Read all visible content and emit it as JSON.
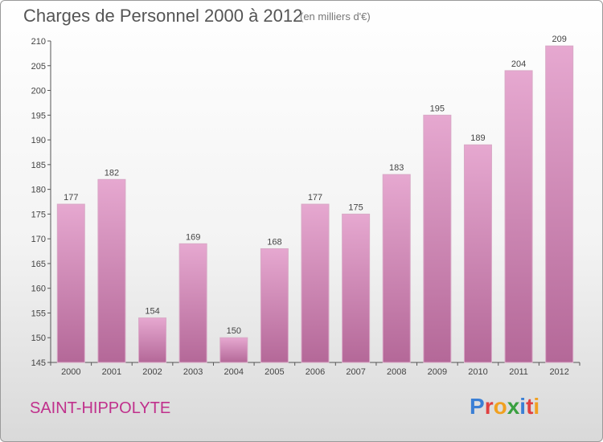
{
  "title": "Charges de Personnel 2000 à 2012",
  "subtitle": "(en milliers d'€)",
  "commune": "SAINT-HIPPOLYTE",
  "logo": {
    "letters": [
      "P",
      "r",
      "o",
      "x",
      "i",
      "t",
      "i"
    ],
    "colors": [
      "#3a7fd5",
      "#e04040",
      "#f0a020",
      "#3aa040",
      "#3a7fd5",
      "#e04040",
      "#f0a020"
    ]
  },
  "colors": {
    "bar_top": "#e6a8d0",
    "bar_bottom": "#b86a9c",
    "text": "#555555",
    "accent": "#c0308c"
  },
  "chart_data": {
    "type": "bar",
    "categories": [
      "2000",
      "2001",
      "2002",
      "2003",
      "2004",
      "2005",
      "2006",
      "2007",
      "2008",
      "2009",
      "2010",
      "2011",
      "2012"
    ],
    "values": [
      177,
      182,
      154,
      169,
      150,
      168,
      177,
      175,
      183,
      195,
      189,
      204,
      209
    ],
    "title": "Charges de Personnel 2000 à 2012",
    "ylim": [
      145,
      210
    ],
    "yticks": [
      145,
      150,
      155,
      160,
      165,
      170,
      175,
      180,
      185,
      190,
      195,
      200,
      205,
      210
    ],
    "grid": false,
    "data_labels": true
  }
}
